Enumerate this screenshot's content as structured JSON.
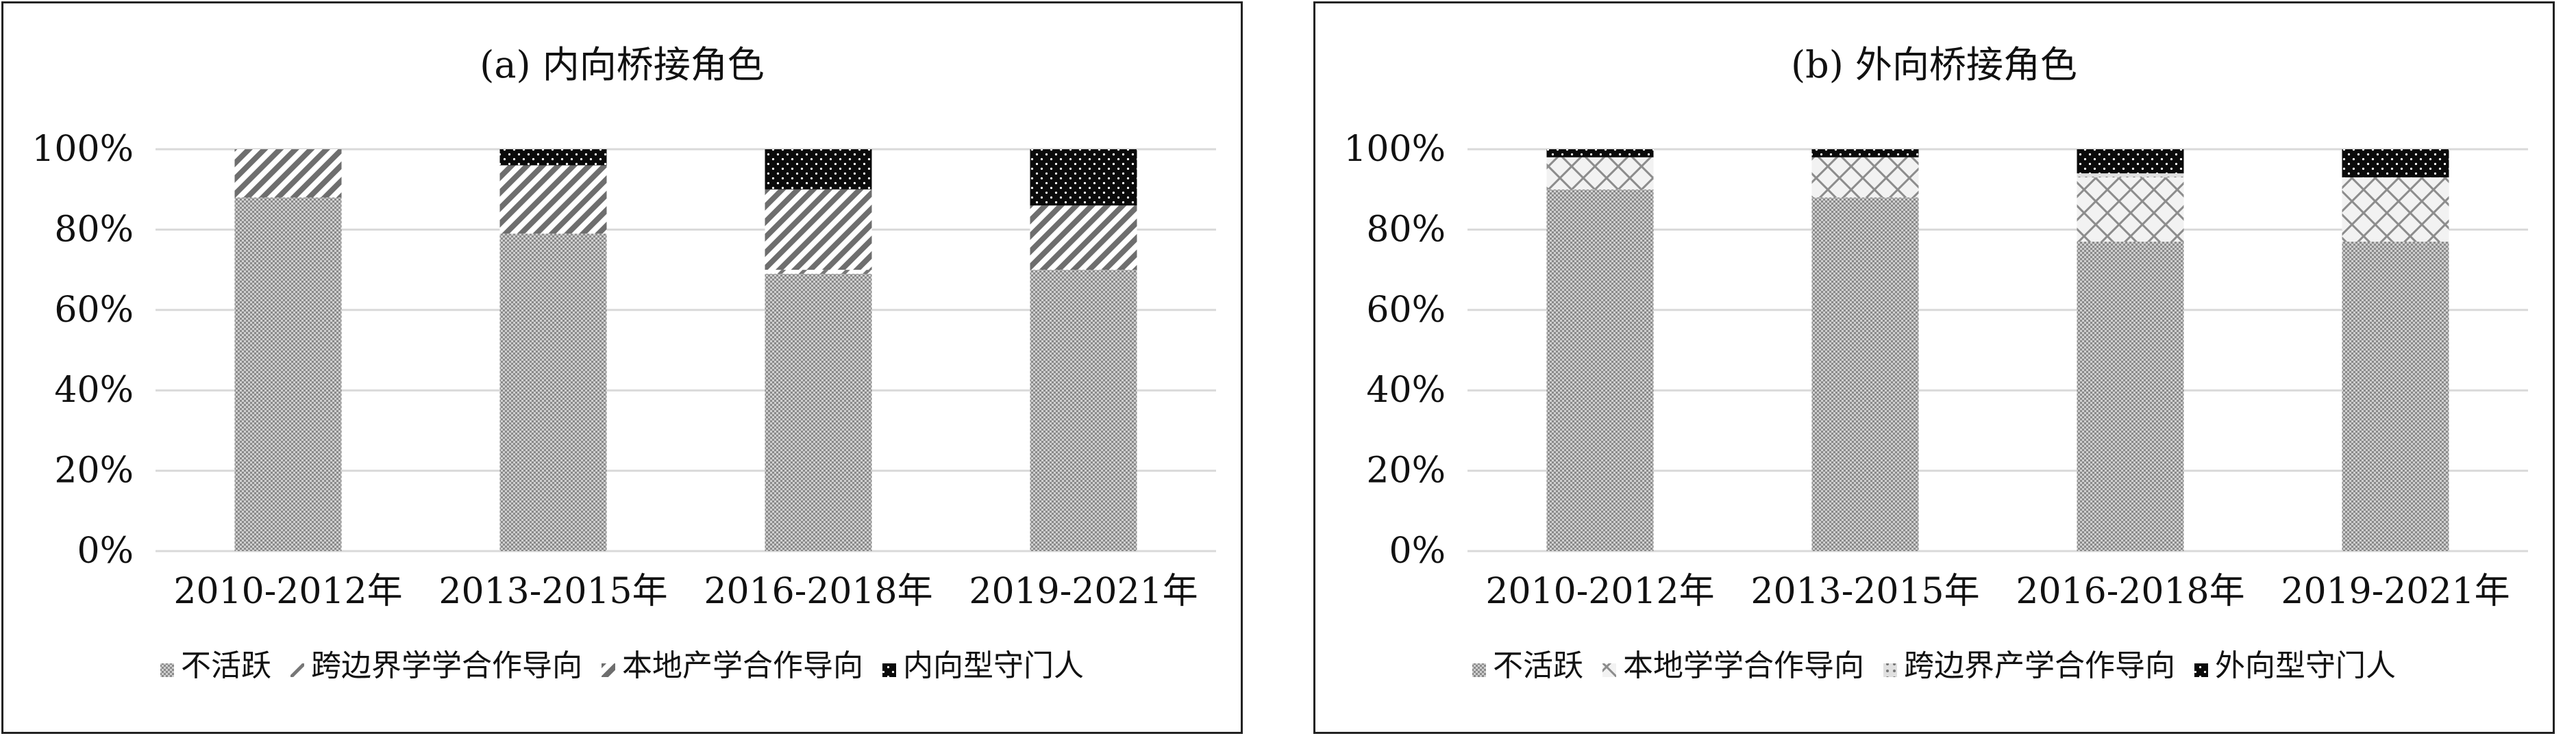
{
  "charts": [
    {
      "panel": "a",
      "chart_data": {
        "type": "bar",
        "stacked": true,
        "title": "(a) 内向桥接角色",
        "categories": [
          "2010-2012年",
          "2013-2015年",
          "2016-2018年",
          "2019-2021年"
        ],
        "ylim": [
          0,
          100
        ],
        "yticks": [
          "0%",
          "20%",
          "40%",
          "60%",
          "80%",
          "100%"
        ],
        "grid": true,
        "legend_position": "bottom",
        "series": [
          {
            "name": "不活跃",
            "values": [
              88,
              79,
              69,
              70
            ],
            "pattern": "dense-dots"
          },
          {
            "name": "跨边界学学合作导向",
            "values": [
              0,
              0,
              1,
              0
            ],
            "pattern": "wide-diagonal"
          },
          {
            "name": "本地产学合作导向",
            "values": [
              12,
              17,
              20,
              16
            ],
            "pattern": "diagonal"
          },
          {
            "name": "内向型守门人",
            "values": [
              0,
              4,
              10,
              14
            ],
            "pattern": "black-dots"
          }
        ]
      }
    },
    {
      "panel": "b",
      "chart_data": {
        "type": "bar",
        "stacked": true,
        "title": "(b) 外向桥接角色",
        "categories": [
          "2010-2012年",
          "2013-2015年",
          "2016-2018年",
          "2019-2021年"
        ],
        "ylim": [
          0,
          100
        ],
        "yticks": [
          "0%",
          "20%",
          "40%",
          "60%",
          "80%",
          "100%"
        ],
        "grid": true,
        "legend_position": "bottom",
        "series": [
          {
            "name": "不活跃",
            "values": [
              90,
              88,
              77,
              77
            ],
            "pattern": "dense-dots"
          },
          {
            "name": "本地学学合作导向",
            "values": [
              8,
              10,
              16,
              16
            ],
            "pattern": "crosshatch"
          },
          {
            "name": "跨边界产学合作导向",
            "values": [
              0,
              0,
              1,
              0
            ],
            "pattern": "dotted-diamond"
          },
          {
            "name": "外向型守门人",
            "values": [
              2,
              2,
              6,
              7
            ],
            "pattern": "black-dots"
          }
        ]
      }
    }
  ]
}
